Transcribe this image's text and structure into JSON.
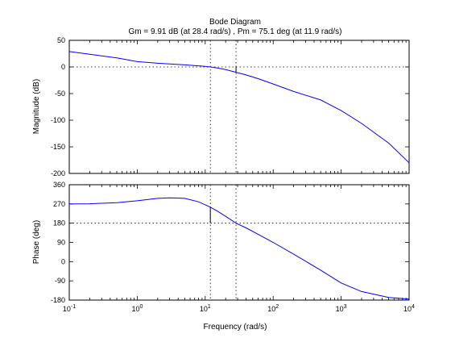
{
  "chart_data": {
    "type": "line",
    "title": "Bode Diagram",
    "subtitle": "Gm = 9.91 dB (at 28.4 rad/s) ,  Pm = 75.1 deg (at 11.9 rad/s)",
    "xlabel": "Frequency  (rad/s)",
    "xscale": "log",
    "xlim": [
      0.1,
      10000
    ],
    "x_tick_labels": [
      {
        "base": "10",
        "exp": "-1"
      },
      {
        "base": "10",
        "exp": "0"
      },
      {
        "base": "10",
        "exp": "1"
      },
      {
        "base": "10",
        "exp": "2"
      },
      {
        "base": "10",
        "exp": "3"
      },
      {
        "base": "10",
        "exp": "4"
      }
    ],
    "line_color": "#0000ff",
    "grid": false,
    "margins": {
      "gain_crossover_freq": 11.9,
      "phase_crossover_freq": 28.4,
      "gain_margin_db": 9.91,
      "phase_margin_deg": 75.1
    },
    "panels": [
      {
        "id": "magnitude",
        "ylabel": "Magnitude (dB)",
        "ylim": [
          -200,
          50
        ],
        "y_ticks": [
          50,
          0,
          -50,
          -100,
          -150,
          -200
        ],
        "reference_line": 0,
        "series": {
          "x": [
            0.1,
            0.2,
            0.5,
            1,
            2,
            5,
            10,
            11.9,
            15,
            20,
            28.4,
            40,
            60,
            100,
            200,
            500,
            1000,
            2000,
            5000,
            10000
          ],
          "y": [
            29,
            24,
            17,
            10,
            7,
            4,
            1,
            0,
            -2,
            -5,
            -10,
            -15,
            -22,
            -32,
            -46,
            -62,
            -82,
            -106,
            -143,
            -180
          ]
        }
      },
      {
        "id": "phase",
        "ylabel": "Phase (deg)",
        "ylim": [
          -180,
          360
        ],
        "y_ticks": [
          360,
          270,
          180,
          90,
          0,
          -90,
          -180
        ],
        "reference_line": 180,
        "series": {
          "x": [
            0.1,
            0.2,
            0.5,
            1,
            2,
            3,
            5,
            8,
            11.9,
            15,
            20,
            28.4,
            40,
            60,
            100,
            200,
            500,
            1000,
            2000,
            5000,
            10000
          ],
          "y": [
            270,
            271,
            276,
            285,
            296,
            299,
            296,
            280,
            255,
            237,
            212,
            180,
            158,
            128,
            90,
            35,
            -40,
            -100,
            -140,
            -168,
            -175
          ]
        }
      }
    ]
  }
}
